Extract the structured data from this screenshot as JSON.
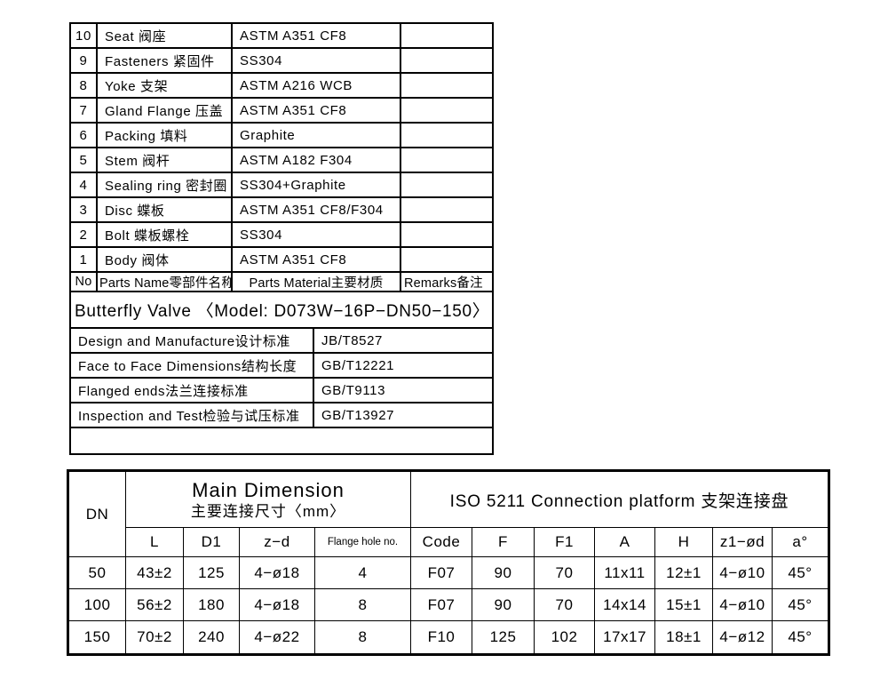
{
  "parts_table": {
    "header": {
      "no": "No",
      "name": "Parts Name零部件名称",
      "material": "Parts Material主要材质",
      "remarks": "Remarks备注"
    },
    "rows": [
      {
        "no": "10",
        "name": "Seat 阀座",
        "material": "ASTM A351 CF8",
        "remarks": ""
      },
      {
        "no": "9",
        "name": "Fasteners 紧固件",
        "material": "SS304",
        "remarks": ""
      },
      {
        "no": "8",
        "name": "Yoke 支架",
        "material": "ASTM A216 WCB",
        "remarks": ""
      },
      {
        "no": "7",
        "name": "Gland Flange 压盖",
        "material": "ASTM A351 CF8",
        "remarks": ""
      },
      {
        "no": "6",
        "name": "Packing 填料",
        "material": "Graphite",
        "remarks": ""
      },
      {
        "no": "5",
        "name": "Stem 阀杆",
        "material": "ASTM A182 F304",
        "remarks": ""
      },
      {
        "no": "4",
        "name": "Sealing ring 密封圈",
        "material": "SS304+Graphite",
        "remarks": ""
      },
      {
        "no": "3",
        "name": "Disc 蝶板",
        "material": "ASTM A351 CF8/F304",
        "remarks": ""
      },
      {
        "no": "2",
        "name": "Bolt 蝶板螺栓",
        "material": "SS304",
        "remarks": ""
      },
      {
        "no": "1",
        "name": "Body 阀体",
        "material": "ASTM A351 CF8",
        "remarks": ""
      }
    ]
  },
  "valve_title": "Butterfly Valve 〈Model: D073W−16P−DN50−150〉",
  "standards_table": {
    "rows": [
      {
        "label": "Design and Manufacture设计标准",
        "value": "JB/T8527"
      },
      {
        "label": "Face to Face Dimensions结构长度",
        "value": "GB/T12221"
      },
      {
        "label": "Flanged ends法兰连接标准",
        "value": "GB/T9113"
      },
      {
        "label": "Inspection and Test检验与试压标准",
        "value": "GB/T13927"
      }
    ]
  },
  "dimension_table": {
    "dn_header": "DN",
    "main_dimension_header": "Main Dimension",
    "main_dimension_subheader": "主要连接尺寸〈mm〉",
    "iso_header": "ISO 5211 Connection platform 支架连接盘",
    "columns": {
      "l": "L",
      "d1": "D1",
      "zd": "z−d",
      "flange_hole": "Flange hole no.",
      "code": "Code",
      "f": "F",
      "f1": "F1",
      "a": "A",
      "h": "H",
      "z1od": "z1−ød",
      "angle": "a°"
    },
    "rows": [
      {
        "dn": "50",
        "l": "43±2",
        "d1": "125",
        "zd": "4−ø18",
        "flange_hole": "4",
        "code": "F07",
        "f": "90",
        "f1": "70",
        "a": "11x11",
        "h": "12±1",
        "z1od": "4−ø10",
        "angle": "45°"
      },
      {
        "dn": "100",
        "l": "56±2",
        "d1": "180",
        "zd": "4−ø18",
        "flange_hole": "8",
        "code": "F07",
        "f": "90",
        "f1": "70",
        "a": "14x14",
        "h": "15±1",
        "z1od": "4−ø10",
        "angle": "45°"
      },
      {
        "dn": "150",
        "l": "70±2",
        "d1": "240",
        "zd": "4−ø22",
        "flange_hole": "8",
        "code": "F10",
        "f": "125",
        "f1": "102",
        "a": "17x17",
        "h": "18±1",
        "z1od": "4−ø12",
        "angle": "45°"
      }
    ]
  }
}
